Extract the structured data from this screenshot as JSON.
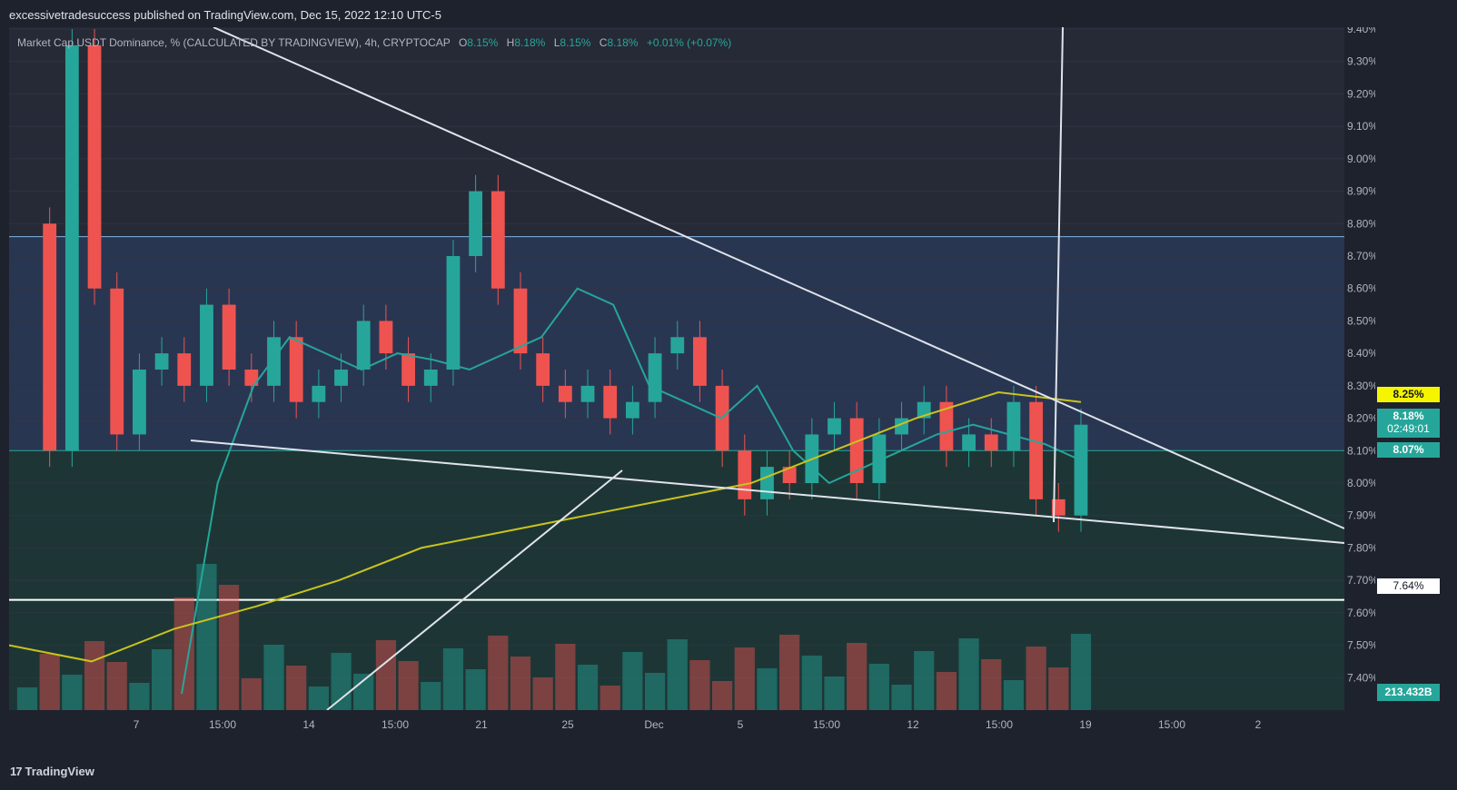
{
  "header": {
    "publisher_text": "excessivetradesuccess published on TradingView.com, Dec 15, 2022 12:10 UTC-5"
  },
  "legend": {
    "symbol_text": "Market Cap USDT Dominance, % (CALCULATED BY TRADINGVIEW), 4h, CRYPTOCAP",
    "o_label": "O",
    "o_value": "8.15%",
    "h_label": "H",
    "h_value": "8.18%",
    "l_label": "L",
    "l_value": "8.15%",
    "c_label": "C",
    "c_value": "8.18%",
    "change": "+0.01% (+0.07%)"
  },
  "badges": {
    "ma_slow": "8.25%",
    "last_price": "8.18%",
    "countdown": "02:49:01",
    "ma_fast": "8.07%",
    "hline": "7.64%",
    "volume": "213.432B"
  },
  "footer": {
    "logo_mark": "17",
    "logo_text": "TradingView"
  },
  "colors": {
    "background": "#1e222d",
    "up": "#26a69a",
    "down": "#ef5350",
    "ma_fast": "#26a69a",
    "ma_slow": "#c9c31d",
    "trendline": "#e0e3eb",
    "zone_upper": "#2a3a5a",
    "zone_lower": "#1b3a36"
  },
  "chart_data": {
    "type": "candlestick",
    "y_axis": {
      "range": [
        7.3,
        9.4
      ],
      "unit": "%",
      "ticks": [
        "7.40%",
        "7.50%",
        "7.60%",
        "7.70%",
        "7.80%",
        "7.90%",
        "8.00%",
        "8.10%",
        "8.20%",
        "8.30%",
        "8.40%",
        "8.50%",
        "8.60%",
        "8.70%",
        "8.80%",
        "8.90%",
        "9.00%",
        "9.10%",
        "9.20%",
        "9.30%",
        "9.40%"
      ]
    },
    "x_axis": {
      "ticks": [
        "7",
        "15:00",
        "14",
        "15:00",
        "21",
        "25",
        "Dec",
        "5",
        "15:00",
        "12",
        "15:00",
        "19",
        "15:00",
        "2"
      ]
    },
    "zones": [
      {
        "name": "upper-zone",
        "from": 8.1,
        "to": 8.76
      },
      {
        "name": "lower-zone",
        "from": 7.3,
        "to": 8.1
      }
    ],
    "horizontal_lines": [
      8.76,
      8.1,
      7.64
    ],
    "series": [
      {
        "name": "price",
        "values": [
          8.8,
          8.1,
          9.35,
          8.6,
          8.15,
          8.35,
          8.4,
          8.3,
          8.55,
          8.35,
          8.3,
          8.45,
          8.25,
          8.3,
          8.35,
          8.5,
          8.4,
          8.3,
          8.35,
          8.7,
          8.9,
          8.6,
          8.4,
          8.3,
          8.25,
          8.3,
          8.2,
          8.25,
          8.4,
          8.45,
          8.3,
          8.1,
          7.95,
          8.05,
          8.0,
          8.15,
          8.2,
          8.0,
          8.15,
          8.2,
          8.25,
          8.1,
          8.15,
          8.1,
          8.25,
          7.95,
          7.9,
          8.18
        ]
      },
      {
        "name": "ma_fast",
        "values": [
          7.35,
          8.0,
          8.3,
          8.45,
          8.4,
          8.35,
          8.4,
          8.38,
          8.35,
          8.4,
          8.45,
          8.6,
          8.55,
          8.3,
          8.25,
          8.2,
          8.3,
          8.1,
          8.0,
          8.05,
          8.1,
          8.15,
          8.18,
          8.15,
          8.12,
          8.07
        ]
      },
      {
        "name": "ma_slow",
        "values": [
          7.5,
          7.45,
          7.55,
          7.62,
          7.7,
          7.8,
          7.85,
          7.9,
          7.95,
          8.0,
          8.1,
          8.2,
          8.28,
          8.25
        ]
      }
    ]
  }
}
